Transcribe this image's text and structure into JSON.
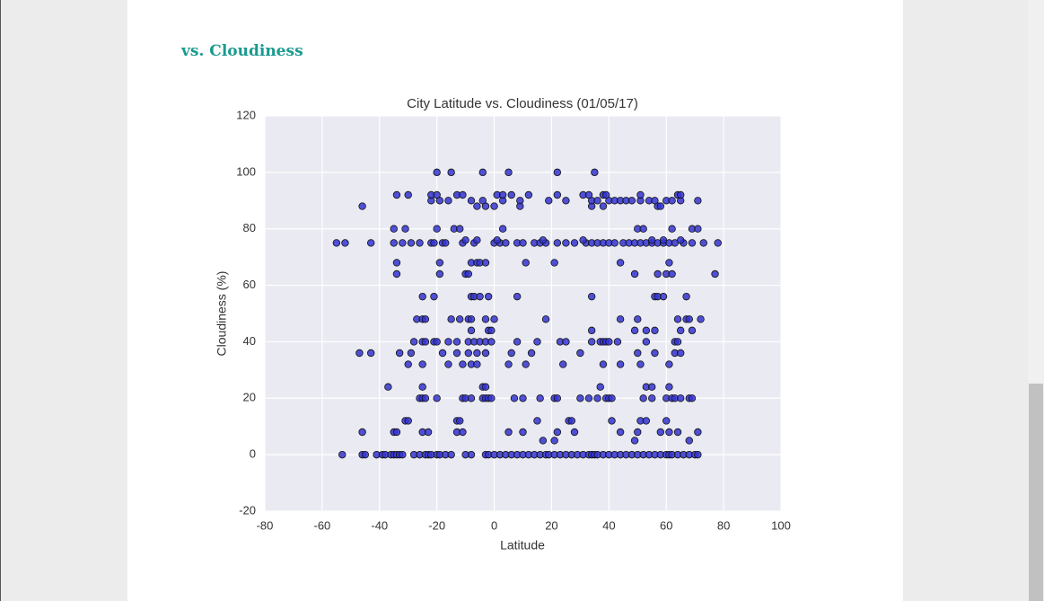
{
  "page": {
    "heading": "vs. Cloudiness"
  },
  "chart_data": {
    "type": "scatter",
    "title": "City Latitude vs. Cloudiness (01/05/17)",
    "xlabel": "Latitude",
    "ylabel": "Cloudiness (%)",
    "color": "#3434d0",
    "grid": true,
    "xlim": [
      -80,
      100
    ],
    "xticks": [
      -80,
      -60,
      -40,
      -20,
      0,
      20,
      40,
      60,
      80,
      100
    ],
    "ylim": [
      -20,
      120
    ],
    "yticks": [
      -20,
      0,
      20,
      40,
      60,
      80,
      100,
      120
    ],
    "x": [
      -53,
      -46,
      -45,
      -41,
      -39,
      -38,
      -36,
      -35,
      -34,
      -33,
      -32,
      -28,
      -26,
      -24,
      -23,
      -22,
      -20,
      -19,
      -17,
      -15,
      -10,
      -8,
      -3,
      -2,
      0,
      2,
      4,
      6,
      8,
      10,
      12,
      14,
      16,
      18,
      19,
      21,
      23,
      25,
      27,
      29,
      31,
      33,
      34,
      35,
      36,
      38,
      40,
      42,
      44,
      46,
      48,
      50,
      52,
      54,
      56,
      58,
      60,
      61,
      62,
      64,
      66,
      68,
      70,
      71,
      17,
      21,
      49,
      68,
      -46,
      -35,
      -34,
      -25,
      -23,
      -13,
      -11,
      5,
      10,
      22,
      28,
      44,
      50,
      58,
      61,
      64,
      71,
      -31,
      -30,
      -13,
      -12,
      15,
      26,
      27,
      41,
      51,
      53,
      60,
      -26,
      -25,
      -24,
      -20,
      -11,
      -10,
      -8,
      -4,
      -3,
      -2,
      -1,
      7,
      10,
      16,
      21,
      22,
      30,
      33,
      36,
      39,
      40,
      41,
      52,
      55,
      60,
      62,
      63,
      65,
      68,
      69,
      -37,
      -25,
      -4,
      -3,
      37,
      53,
      55,
      61,
      -30,
      -25,
      -16,
      -11,
      -8,
      -6,
      5,
      11,
      24,
      38,
      44,
      51,
      61,
      -47,
      -43,
      -33,
      -29,
      -18,
      -13,
      -9,
      -6,
      -3,
      6,
      13,
      30,
      50,
      56,
      63,
      65,
      -28,
      -25,
      -24,
      -21,
      -20,
      -16,
      -13,
      -9,
      -7,
      -5,
      -3,
      -1,
      8,
      15,
      23,
      25,
      34,
      37,
      38,
      39,
      40,
      43,
      53,
      63,
      64,
      -8,
      -2,
      -1,
      34,
      49,
      53,
      56,
      65,
      69,
      -27,
      -25,
      -24,
      -15,
      -12,
      -9,
      -8,
      -3,
      0,
      18,
      44,
      50,
      64,
      67,
      68,
      72,
      -25,
      -21,
      -8,
      -7,
      -5,
      -2,
      8,
      34,
      56,
      57,
      59,
      67,
      -34,
      -19,
      -10,
      -9,
      49,
      57,
      60,
      62,
      77,
      -34,
      -19,
      -8,
      -6,
      -5,
      -3,
      11,
      21,
      44,
      61,
      -55,
      -52,
      -43,
      -35,
      -32,
      -29,
      -26,
      -22,
      -21,
      -18,
      -17,
      -11,
      -7,
      0,
      2,
      4,
      8,
      10,
      14,
      16,
      18,
      22,
      25,
      28,
      32,
      34,
      36,
      38,
      40,
      42,
      45,
      47,
      49,
      51,
      53,
      55,
      57,
      59,
      61,
      63,
      66,
      69,
      73,
      78,
      -10,
      -6,
      1,
      17,
      31,
      55,
      59,
      65,
      -35,
      -31,
      -20,
      -14,
      -12,
      3,
      50,
      52,
      62,
      69,
      71,
      -46,
      -6,
      -3,
      0,
      9,
      34,
      38,
      57,
      58,
      -22,
      -19,
      -16,
      -8,
      -4,
      3,
      9,
      19,
      25,
      34,
      36,
      40,
      42,
      44,
      46,
      48,
      51,
      54,
      56,
      60,
      62,
      65,
      71,
      -34,
      -30,
      -22,
      -20,
      -13,
      -11,
      1,
      3,
      6,
      12,
      22,
      31,
      33,
      38,
      39,
      51,
      64,
      65,
      -20,
      -15,
      -4,
      5,
      22,
      35
    ],
    "values": [
      0,
      0,
      0,
      0,
      0,
      0,
      0,
      0,
      0,
      0,
      0,
      0,
      0,
      0,
      0,
      0,
      0,
      0,
      0,
      0,
      0,
      0,
      0,
      0,
      0,
      0,
      0,
      0,
      0,
      0,
      0,
      0,
      0,
      0,
      0,
      0,
      0,
      0,
      0,
      0,
      0,
      0,
      0,
      0,
      0,
      0,
      0,
      0,
      0,
      0,
      0,
      0,
      0,
      0,
      0,
      0,
      0,
      0,
      0,
      0,
      0,
      0,
      0,
      0,
      5,
      5,
      5,
      5,
      8,
      8,
      8,
      8,
      8,
      8,
      8,
      8,
      8,
      8,
      8,
      8,
      8,
      8,
      8,
      8,
      8,
      12,
      12,
      12,
      12,
      12,
      12,
      12,
      12,
      12,
      12,
      12,
      20,
      20,
      20,
      20,
      20,
      20,
      20,
      20,
      20,
      20,
      20,
      20,
      20,
      20,
      20,
      20,
      20,
      20,
      20,
      20,
      20,
      20,
      20,
      20,
      20,
      20,
      20,
      20,
      20,
      20,
      24,
      24,
      24,
      24,
      24,
      24,
      24,
      24,
      32,
      32,
      32,
      32,
      32,
      32,
      32,
      32,
      32,
      32,
      32,
      32,
      32,
      36,
      36,
      36,
      36,
      36,
      36,
      36,
      36,
      36,
      36,
      36,
      36,
      36,
      36,
      36,
      36,
      40,
      40,
      40,
      40,
      40,
      40,
      40,
      40,
      40,
      40,
      40,
      40,
      40,
      40,
      40,
      40,
      40,
      40,
      40,
      40,
      40,
      40,
      40,
      40,
      40,
      44,
      44,
      44,
      44,
      44,
      44,
      44,
      44,
      44,
      48,
      48,
      48,
      48,
      48,
      48,
      48,
      48,
      48,
      48,
      48,
      48,
      48,
      48,
      48,
      48,
      56,
      56,
      56,
      56,
      56,
      56,
      56,
      56,
      56,
      56,
      56,
      56,
      64,
      64,
      64,
      64,
      64,
      64,
      64,
      64,
      64,
      68,
      68,
      68,
      68,
      68,
      68,
      68,
      68,
      68,
      68,
      75,
      75,
      75,
      75,
      75,
      75,
      75,
      75,
      75,
      75,
      75,
      75,
      75,
      75,
      75,
      75,
      75,
      75,
      75,
      75,
      75,
      75,
      75,
      75,
      75,
      75,
      75,
      75,
      75,
      75,
      75,
      75,
      75,
      75,
      75,
      75,
      75,
      75,
      75,
      75,
      75,
      75,
      75,
      75,
      76,
      76,
      76,
      76,
      76,
      76,
      76,
      76,
      80,
      80,
      80,
      80,
      80,
      80,
      80,
      80,
      80,
      80,
      80,
      88,
      88,
      88,
      88,
      88,
      88,
      88,
      88,
      88,
      90,
      90,
      90,
      90,
      90,
      90,
      90,
      90,
      90,
      90,
      90,
      90,
      90,
      90,
      90,
      90,
      90,
      90,
      90,
      90,
      90,
      90,
      90,
      92,
      92,
      92,
      92,
      92,
      92,
      92,
      92,
      92,
      92,
      92,
      92,
      92,
      92,
      92,
      92,
      92,
      92,
      100,
      100,
      100,
      100,
      100,
      100
    ]
  }
}
